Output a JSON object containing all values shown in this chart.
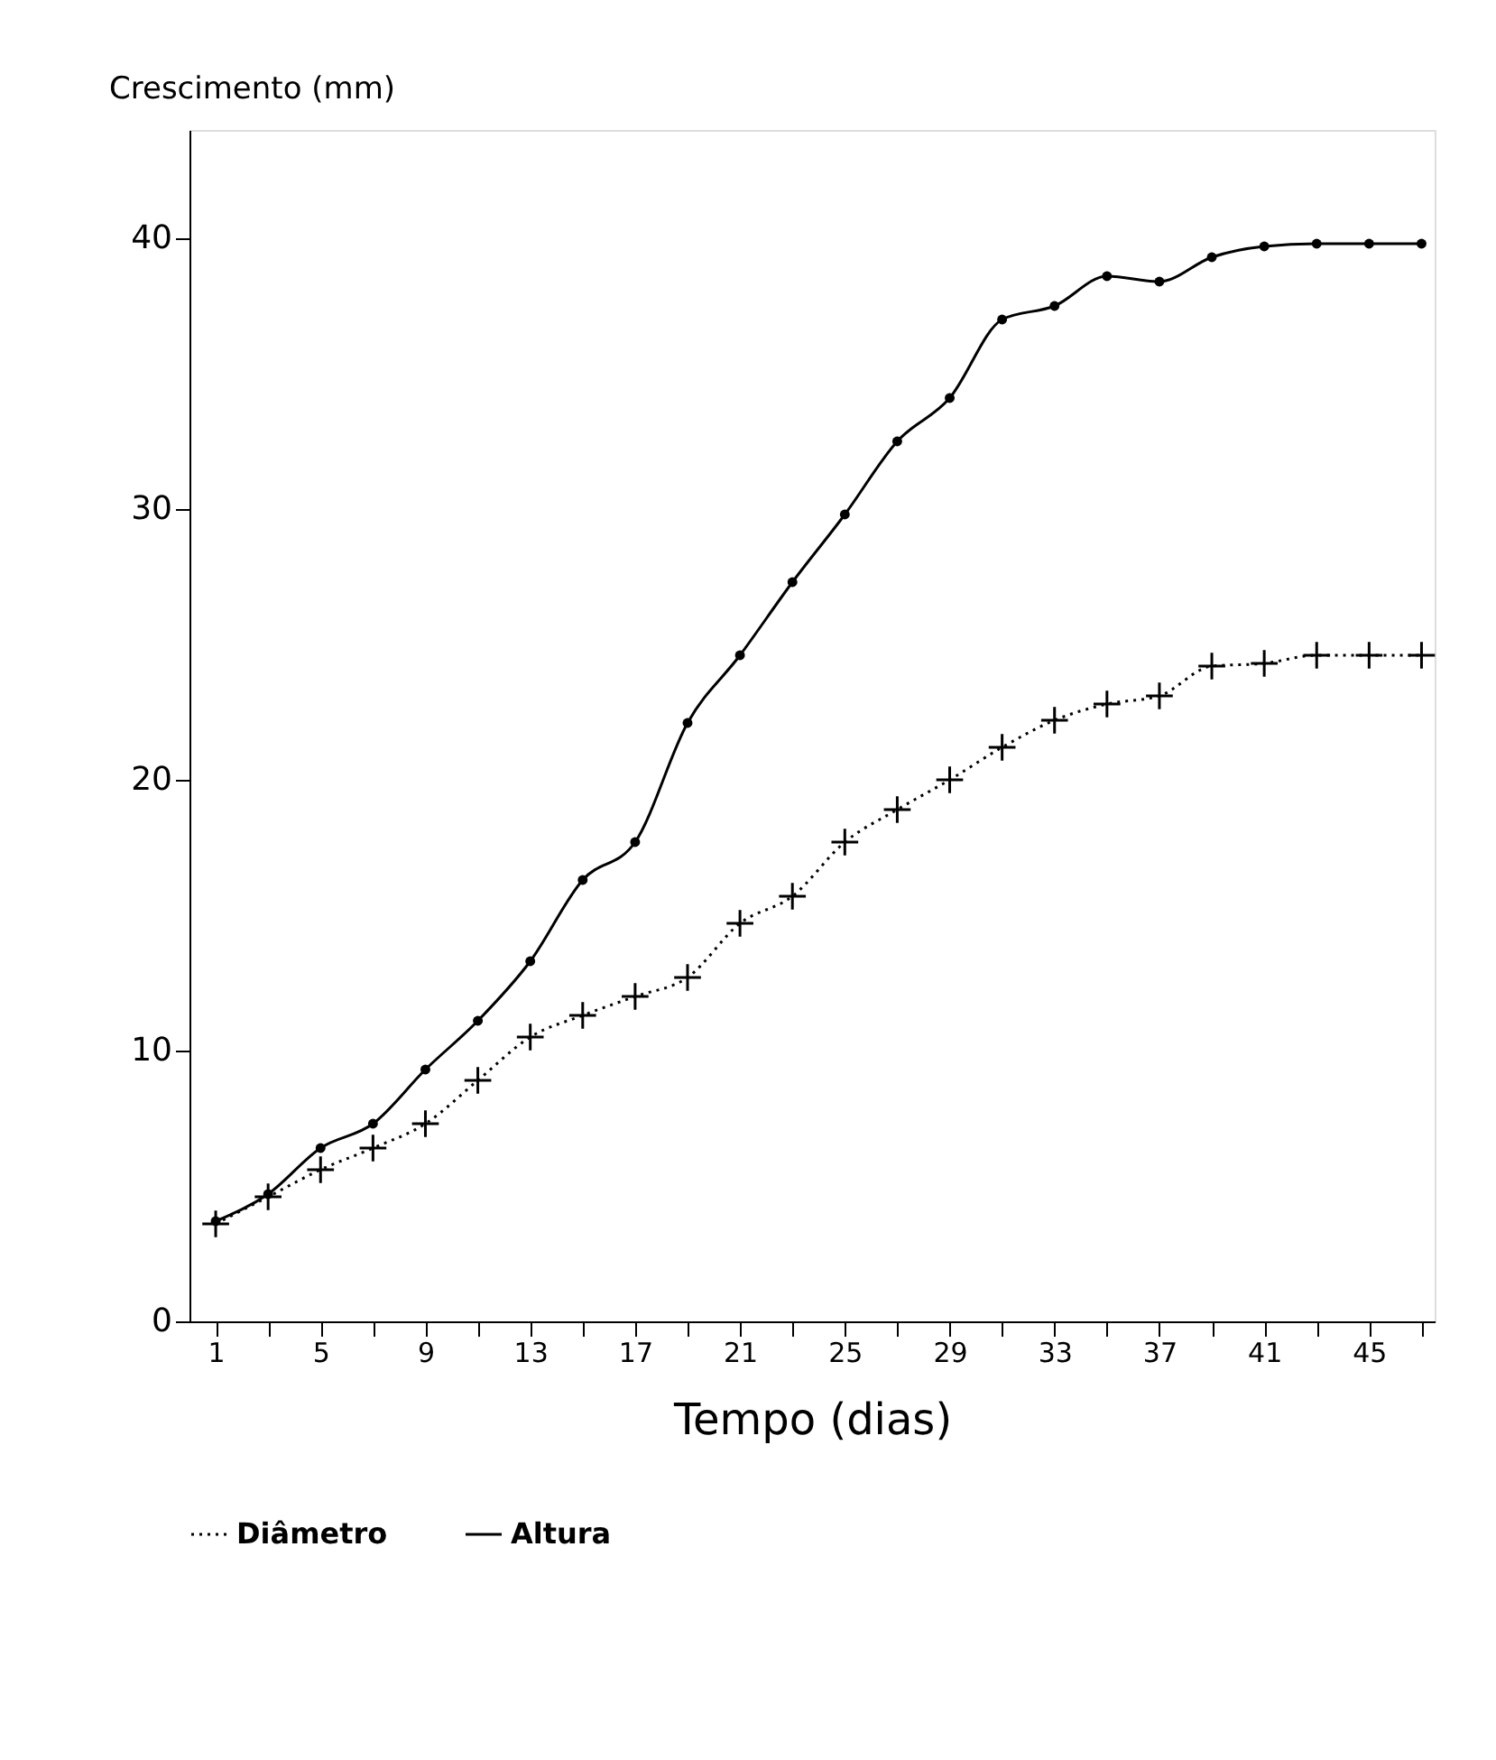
{
  "chart_data": {
    "type": "line",
    "ylabel": "Crescimento (mm)",
    "xlabel": "Tempo (dias)",
    "x": [
      1,
      3,
      5,
      7,
      9,
      11,
      13,
      15,
      17,
      19,
      21,
      23,
      25,
      27,
      29,
      31,
      33,
      35,
      37,
      39,
      41,
      43,
      45,
      47
    ],
    "series": [
      {
        "name": "Diâmetro",
        "color": "#000000",
        "marker": "cross",
        "line_style": "dotted",
        "values": [
          3.6,
          4.6,
          5.6,
          6.4,
          7.3,
          8.9,
          10.5,
          11.3,
          12.0,
          12.7,
          14.7,
          15.7,
          17.7,
          18.9,
          20.0,
          21.2,
          22.2,
          22.8,
          23.1,
          24.2,
          24.3,
          24.6,
          24.6,
          24.6
        ]
      },
      {
        "name": "Altura",
        "color": "#000000",
        "marker": "circle",
        "line_style": "solid",
        "values": [
          3.7,
          4.7,
          6.4,
          7.3,
          9.3,
          11.1,
          13.3,
          16.3,
          17.7,
          22.1,
          24.6,
          27.3,
          29.8,
          32.5,
          34.1,
          37.0,
          37.5,
          38.6,
          38.4,
          39.3,
          39.7,
          39.8,
          39.8,
          39.8
        ]
      }
    ],
    "xlim": [
      0,
      47.5
    ],
    "ylim": [
      0,
      44
    ],
    "xticks": [
      1,
      {
        "value": 3,
        "label": null
      },
      5,
      {
        "value": 7,
        "label": null
      },
      9,
      {
        "value": 11,
        "label": null
      },
      13,
      {
        "value": 15,
        "label": null
      },
      17,
      {
        "value": 19,
        "label": null
      },
      21,
      {
        "value": 23,
        "label": null
      },
      25,
      {
        "value": 27,
        "label": null
      },
      29,
      {
        "value": 31,
        "label": null
      },
      33,
      {
        "value": 35,
        "label": null
      },
      37,
      {
        "value": 39,
        "label": null
      },
      41,
      {
        "value": 43,
        "label": null
      },
      45,
      {
        "value": 47,
        "label": null
      }
    ],
    "yticks": [
      0,
      10,
      20,
      30,
      40
    ],
    "legend": "bottom",
    "grid": false
  }
}
